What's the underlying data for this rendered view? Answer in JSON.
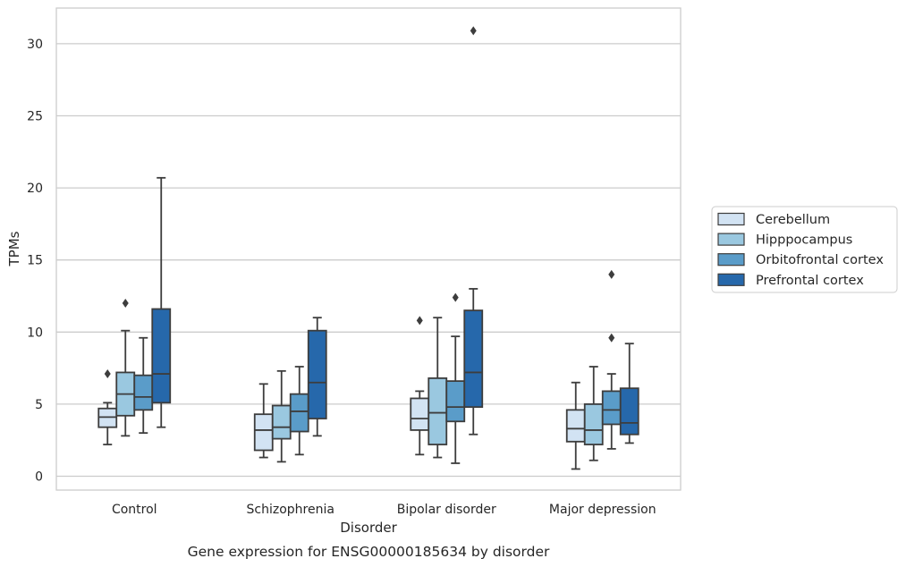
{
  "chart_data": {
    "type": "box",
    "caption": "Gene expression for ENSG00000185634 by disorder",
    "xlabel": "Disorder",
    "ylabel": "TPMs",
    "ylim": [
      -1,
      32.3
    ],
    "yticks": [
      0,
      5,
      10,
      15,
      20,
      25,
      30
    ],
    "grid": "horizontal",
    "legend_position": "right",
    "categories": [
      "Control",
      "Schizophrenia",
      "Bipolar disorder",
      "Major depression"
    ],
    "series": [
      {
        "name": "Cerebellum",
        "color": "#d2e3f3",
        "boxes": [
          {
            "whislo": 2.2,
            "q1": 3.4,
            "med": 4.1,
            "q3": 4.7,
            "whishi": 5.1,
            "fliers": [
              7.1
            ]
          },
          {
            "whislo": 1.3,
            "q1": 1.8,
            "med": 3.2,
            "q3": 4.3,
            "whishi": 6.4,
            "fliers": []
          },
          {
            "whislo": 1.5,
            "q1": 3.2,
            "med": 4.0,
            "q3": 5.4,
            "whishi": 5.9,
            "fliers": [
              10.8
            ]
          },
          {
            "whislo": 0.5,
            "q1": 2.4,
            "med": 3.3,
            "q3": 4.6,
            "whishi": 6.5,
            "fliers": []
          }
        ]
      },
      {
        "name": "Hipppocampus",
        "color": "#9ac8e0",
        "boxes": [
          {
            "whislo": 2.8,
            "q1": 4.2,
            "med": 5.7,
            "q3": 7.2,
            "whishi": 10.1,
            "fliers": [
              12.0
            ]
          },
          {
            "whislo": 1.0,
            "q1": 2.6,
            "med": 3.4,
            "q3": 4.9,
            "whishi": 7.3,
            "fliers": []
          },
          {
            "whislo": 1.3,
            "q1": 2.2,
            "med": 4.4,
            "q3": 6.8,
            "whishi": 11.0,
            "fliers": []
          },
          {
            "whislo": 1.1,
            "q1": 2.2,
            "med": 3.2,
            "q3": 5.0,
            "whishi": 7.6,
            "fliers": []
          }
        ]
      },
      {
        "name": "Orbitofrontal cortex",
        "color": "#5a9cc9",
        "boxes": [
          {
            "whislo": 3.0,
            "q1": 4.6,
            "med": 5.5,
            "q3": 7.0,
            "whishi": 9.6,
            "fliers": []
          },
          {
            "whislo": 1.5,
            "q1": 3.1,
            "med": 4.5,
            "q3": 5.7,
            "whishi": 7.6,
            "fliers": []
          },
          {
            "whislo": 0.9,
            "q1": 3.8,
            "med": 4.8,
            "q3": 6.6,
            "whishi": 9.7,
            "fliers": [
              12.4
            ]
          },
          {
            "whislo": 1.9,
            "q1": 3.6,
            "med": 4.6,
            "q3": 5.9,
            "whishi": 7.1,
            "fliers": [
              9.6,
              14.0
            ]
          }
        ]
      },
      {
        "name": "Prefrontal cortex",
        "color": "#2668ab",
        "boxes": [
          {
            "whislo": 3.4,
            "q1": 5.1,
            "med": 7.1,
            "q3": 11.6,
            "whishi": 20.7,
            "fliers": []
          },
          {
            "whislo": 2.8,
            "q1": 4.0,
            "med": 6.5,
            "q3": 10.1,
            "whishi": 11.0,
            "fliers": []
          },
          {
            "whislo": 2.9,
            "q1": 4.8,
            "med": 7.2,
            "q3": 11.5,
            "whishi": 13.0,
            "fliers": [
              30.9
            ]
          },
          {
            "whislo": 2.3,
            "q1": 2.9,
            "med": 3.7,
            "q3": 6.1,
            "whishi": 9.2,
            "fliers": []
          }
        ]
      }
    ]
  }
}
